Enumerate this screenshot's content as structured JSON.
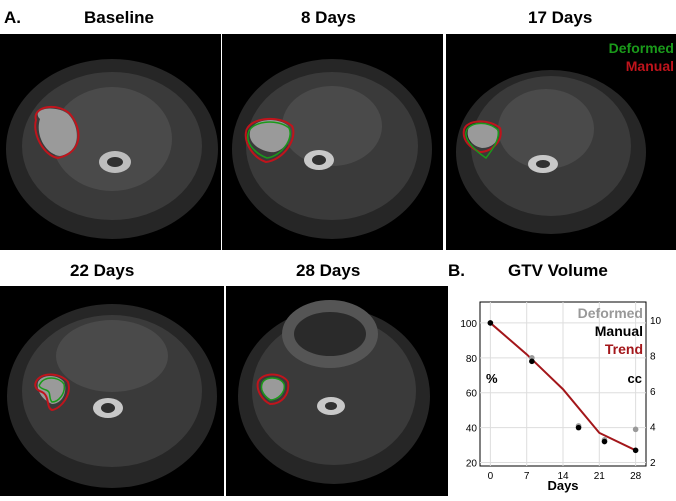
{
  "panel_a": {
    "letter": "A.",
    "scans": [
      {
        "label": "Baseline"
      },
      {
        "label": "8 Days"
      },
      {
        "label": "17 Days"
      },
      {
        "label": "22 Days"
      },
      {
        "label": "28 Days"
      }
    ],
    "legend": {
      "deformed": "Deformed",
      "manual": "Manual"
    },
    "colors": {
      "deformed": "#1a9a1a",
      "manual": "#c0141c"
    }
  },
  "panel_b": {
    "letter": "B."
  },
  "chart_data": {
    "type": "scatter",
    "title": "GTV Volume",
    "xlabel": "Days",
    "ylabel_left": "%",
    "ylabel_right": "cc",
    "x_ticks": [
      0,
      7,
      14,
      21,
      28
    ],
    "y_left_ticks": [
      20,
      40,
      60,
      80,
      100
    ],
    "y_right_ticks": [
      2,
      4,
      6,
      8,
      10
    ],
    "xlim": [
      -2,
      30
    ],
    "ylim": [
      18,
      112
    ],
    "legend": [
      "Deformed",
      "Manual",
      "Trend"
    ],
    "series": [
      {
        "name": "Deformed",
        "color": "#999999",
        "x": [
          0,
          8,
          17,
          22,
          28
        ],
        "y": [
          100,
          80,
          41,
          33,
          39
        ]
      },
      {
        "name": "Manual",
        "color": "#000000",
        "x": [
          0,
          8,
          17,
          22,
          28
        ],
        "y": [
          100,
          78,
          40,
          32,
          27
        ]
      },
      {
        "name": "Trend",
        "color": "#a3161a",
        "x": [
          0,
          7,
          14,
          21,
          28
        ],
        "y": [
          100,
          82,
          62,
          37,
          27
        ]
      }
    ]
  }
}
